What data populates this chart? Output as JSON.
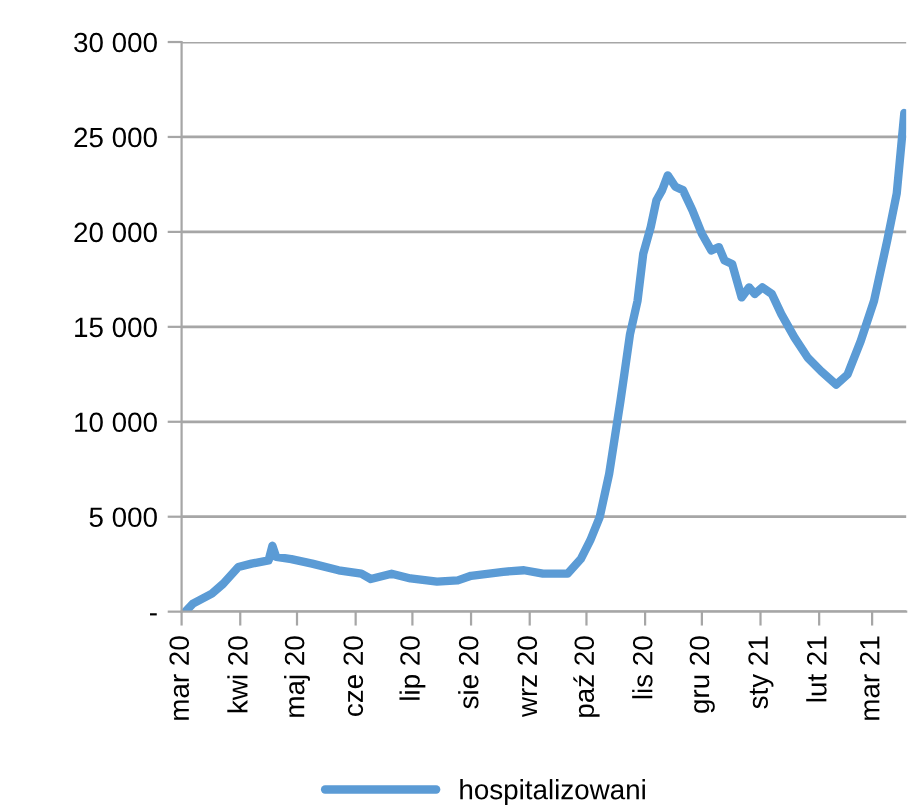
{
  "chart_data": {
    "type": "line",
    "x": [
      "2020-03-03",
      "2020-03-07",
      "2020-03-17",
      "2020-03-23",
      "2020-03-31",
      "2020-04-07",
      "2020-04-16",
      "2020-04-18",
      "2020-04-20",
      "2020-04-28",
      "2020-05-09",
      "2020-05-23",
      "2020-06-04",
      "2020-06-09",
      "2020-06-20",
      "2020-06-30",
      "2020-07-14",
      "2020-07-25",
      "2020-08-01",
      "2020-08-18",
      "2020-08-29",
      "2020-09-08",
      "2020-09-21",
      "2020-09-28",
      "2020-10-03",
      "2020-10-08",
      "2020-10-13",
      "2020-10-19",
      "2020-10-21",
      "2020-10-24",
      "2020-10-28",
      "2020-10-31",
      "2020-11-04",
      "2020-11-07",
      "2020-11-10",
      "2020-11-13",
      "2020-11-17",
      "2020-11-21",
      "2020-11-26",
      "2020-12-01",
      "2020-12-06",
      "2020-12-10",
      "2020-12-13",
      "2020-12-17",
      "2020-12-22",
      "2020-12-26",
      "2020-12-29",
      "2021-01-02",
      "2021-01-07",
      "2021-01-12",
      "2021-01-19",
      "2021-01-26",
      "2021-02-02",
      "2021-02-10",
      "2021-02-16",
      "2021-02-23",
      "2021-03-02",
      "2021-03-09",
      "2021-03-14",
      "2021-03-18"
    ],
    "series": [
      {
        "name": "hospitalizowani",
        "color": "#5b9bd5",
        "values": [
          0,
          420,
          950,
          1470,
          2350,
          2530,
          2700,
          3470,
          2880,
          2770,
          2530,
          2180,
          2000,
          1720,
          2000,
          1750,
          1580,
          1650,
          1890,
          2100,
          2180,
          2000,
          2000,
          2770,
          3750,
          4980,
          7260,
          11120,
          12500,
          14600,
          16370,
          18840,
          20260,
          21670,
          22200,
          22980,
          22380,
          22200,
          21140,
          19900,
          19020,
          19200,
          18490,
          18310,
          16550,
          17080,
          16730,
          17080,
          16730,
          15670,
          14430,
          13370,
          12670,
          11960,
          12490,
          14260,
          16370,
          19550,
          22020,
          26260
        ]
      }
    ],
    "xlim": [
      "2020-03-01",
      "2021-03-19"
    ],
    "xticks": [
      {
        "value": "2020-03-01",
        "label": "mar 20"
      },
      {
        "value": "2020-04-01",
        "label": "kwi 20"
      },
      {
        "value": "2020-05-01",
        "label": "maj 20"
      },
      {
        "value": "2020-06-01",
        "label": "cze 20"
      },
      {
        "value": "2020-07-01",
        "label": "lip 20"
      },
      {
        "value": "2020-08-01",
        "label": "sie 20"
      },
      {
        "value": "2020-09-01",
        "label": "wrz 20"
      },
      {
        "value": "2020-10-01",
        "label": "paź 20"
      },
      {
        "value": "2020-11-01",
        "label": "lis 20"
      },
      {
        "value": "2020-12-01",
        "label": "gru 20"
      },
      {
        "value": "2021-01-01",
        "label": "sty 21"
      },
      {
        "value": "2021-02-01",
        "label": "lut 21"
      },
      {
        "value": "2021-03-01",
        "label": "mar 21"
      }
    ],
    "ylim": [
      0,
      30000
    ],
    "yticks": [
      {
        "value": 0,
        "label": "-"
      },
      {
        "value": 5000,
        "label": "5 000"
      },
      {
        "value": 10000,
        "label": "10 000"
      },
      {
        "value": 15000,
        "label": "15 000"
      },
      {
        "value": 20000,
        "label": "20 000"
      },
      {
        "value": 25000,
        "label": "25 000"
      },
      {
        "value": 30000,
        "label": "30 000"
      }
    ],
    "grid": "y",
    "legend": "bottom",
    "marker": "none",
    "line_style": "solid"
  }
}
